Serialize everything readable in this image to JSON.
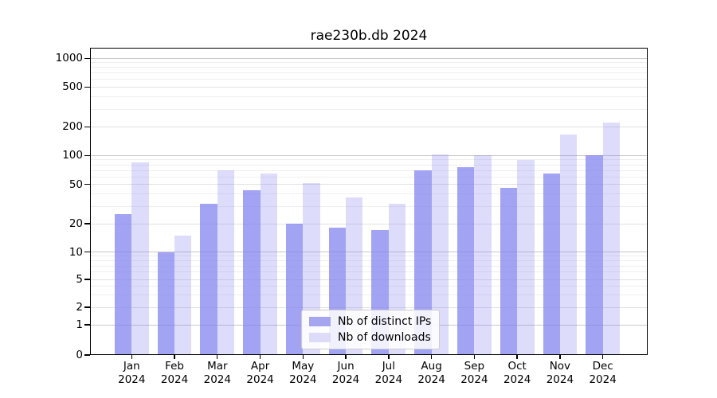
{
  "chart": {
    "title": "rae230b.db 2024"
  },
  "legend": {
    "position": "lower center",
    "items": [
      {
        "label": "Nb of distinct IPs",
        "swatch": "dark-purple"
      },
      {
        "label": "Nb of downloads",
        "swatch": "light-purple"
      }
    ]
  },
  "chart_data": {
    "type": "bar",
    "title": "rae230b.db 2024",
    "categories": [
      "Jan",
      "Feb",
      "Mar",
      "Apr",
      "May",
      "Jun",
      "Jul",
      "Aug",
      "Sep",
      "Oct",
      "Nov",
      "Dec"
    ],
    "x_year_label": "2024",
    "series": [
      {
        "name": "Nb of distinct IPs",
        "values": [
          25,
          10,
          32,
          44,
          20,
          18,
          17,
          70,
          76,
          46,
          65,
          100
        ]
      },
      {
        "name": "Nb of downloads",
        "values": [
          85,
          15,
          70,
          65,
          52,
          37,
          32,
          103,
          100,
          90,
          165,
          220
        ]
      }
    ],
    "xlabel": "",
    "ylabel": "",
    "y_ticks": [
      1000,
      500,
      200,
      100,
      50,
      20,
      10,
      5,
      2,
      1,
      0
    ],
    "yscale": "symlog",
    "ylim": [
      0,
      1400
    ],
    "grid": true,
    "legend_position": "lower center",
    "colors": {
      "distinct_ips_bar": "#a4a4f0",
      "downloads_bar": "#ddddfb",
      "grid_major": "#c9c9c9",
      "grid_minor": "#efefef",
      "axis": "#000000"
    }
  }
}
